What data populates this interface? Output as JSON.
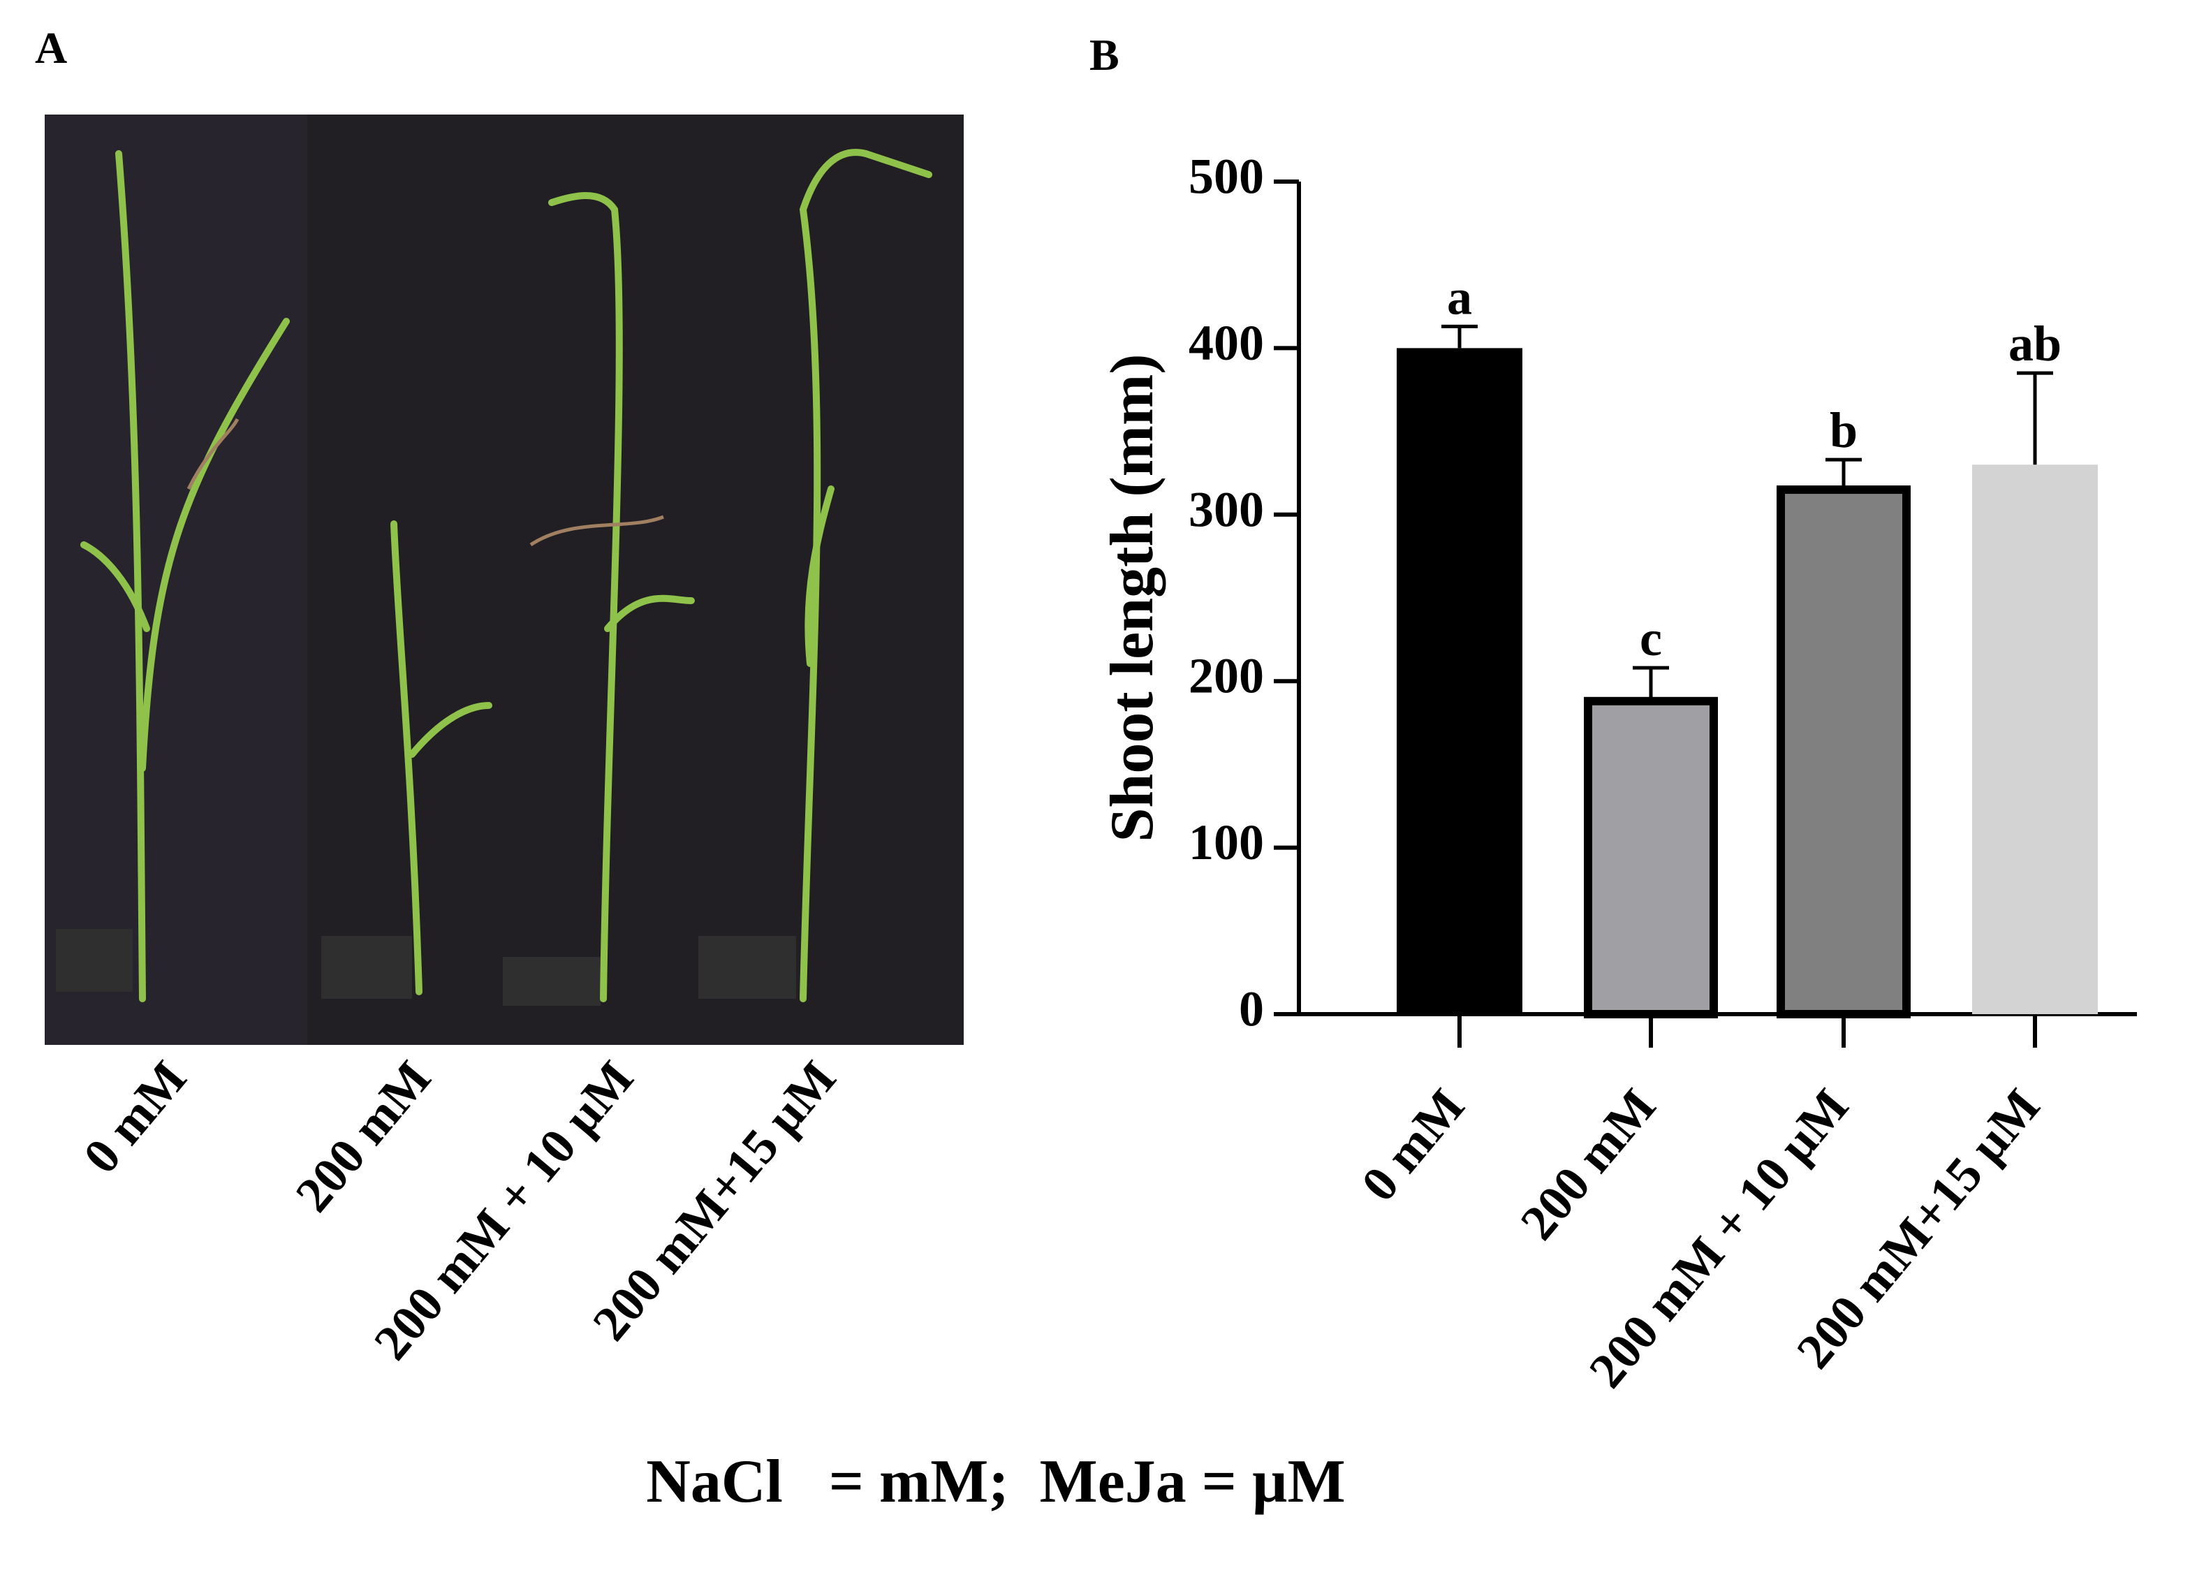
{
  "panel_a": {
    "label": "A",
    "labels": [
      "0 mM",
      "200 mM",
      "200 mM + 10 µM",
      "200 mM+15 µM"
    ]
  },
  "chart_data": {
    "type": "bar",
    "panel_label": "B",
    "ylabel": "Shoot length (mm)",
    "categories": [
      "0 mM",
      "200 mM",
      "200 mM + 10 µM",
      "200 mM+15 µM"
    ],
    "values": [
      400,
      188,
      315,
      330
    ],
    "errors": [
      13,
      20,
      18,
      55
    ],
    "annotations": [
      "a",
      "c",
      "b",
      "ab"
    ],
    "colors": [
      "#000000",
      "#a0a0a4",
      "#808080",
      "#d3d3d3"
    ],
    "ylim": [
      0,
      500
    ],
    "yticks": [
      0,
      100,
      200,
      300,
      400,
      500
    ]
  },
  "caption": "NaCl   = mM;  MeJa = µM"
}
